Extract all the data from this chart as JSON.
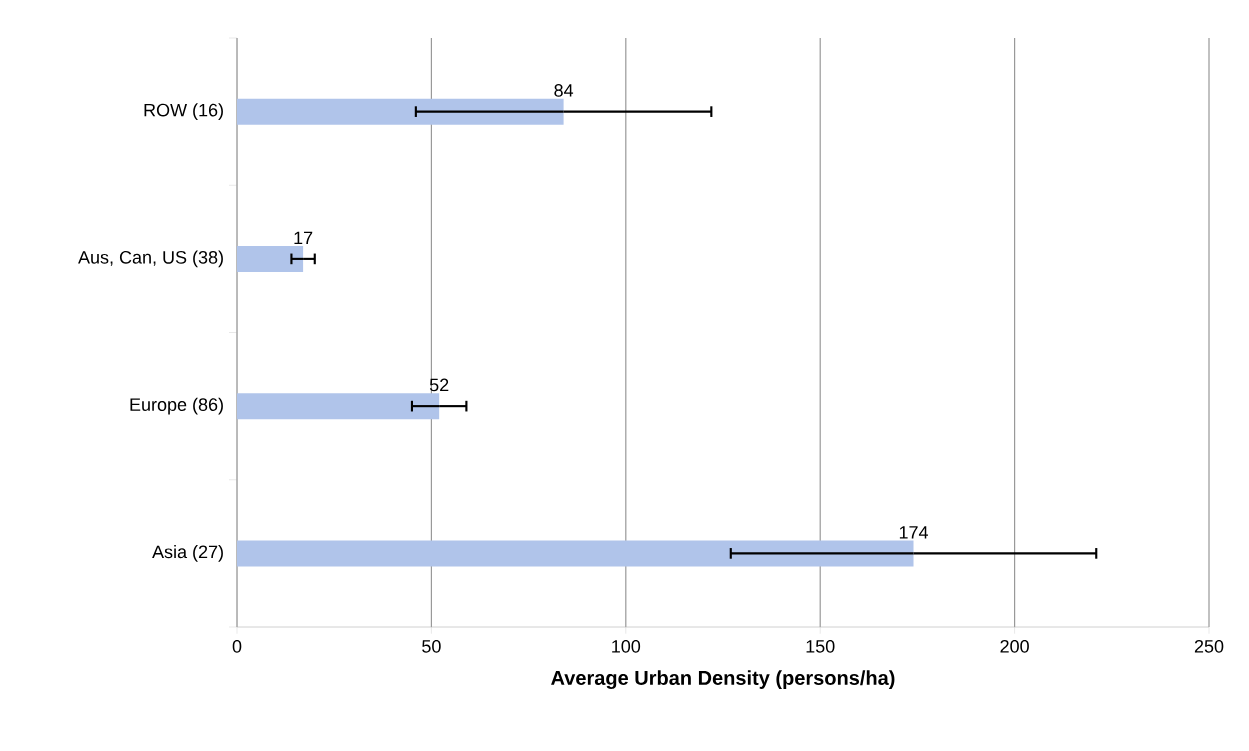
{
  "chart_data": {
    "type": "bar",
    "orientation": "horizontal",
    "categories": [
      "ROW (16)",
      "Aus, Can, US (38)",
      "Europe (86)",
      "Asia (27)"
    ],
    "values": [
      84,
      17,
      52,
      174
    ],
    "errors": [
      38,
      3,
      7,
      47
    ],
    "color": "#b0c4ea",
    "xlabel": "Average Urban Density (persons/ha)",
    "xlim": [
      0,
      250
    ],
    "xticks": [
      0,
      50,
      100,
      150,
      200,
      250
    ],
    "grid": "x",
    "data_labels": true
  }
}
